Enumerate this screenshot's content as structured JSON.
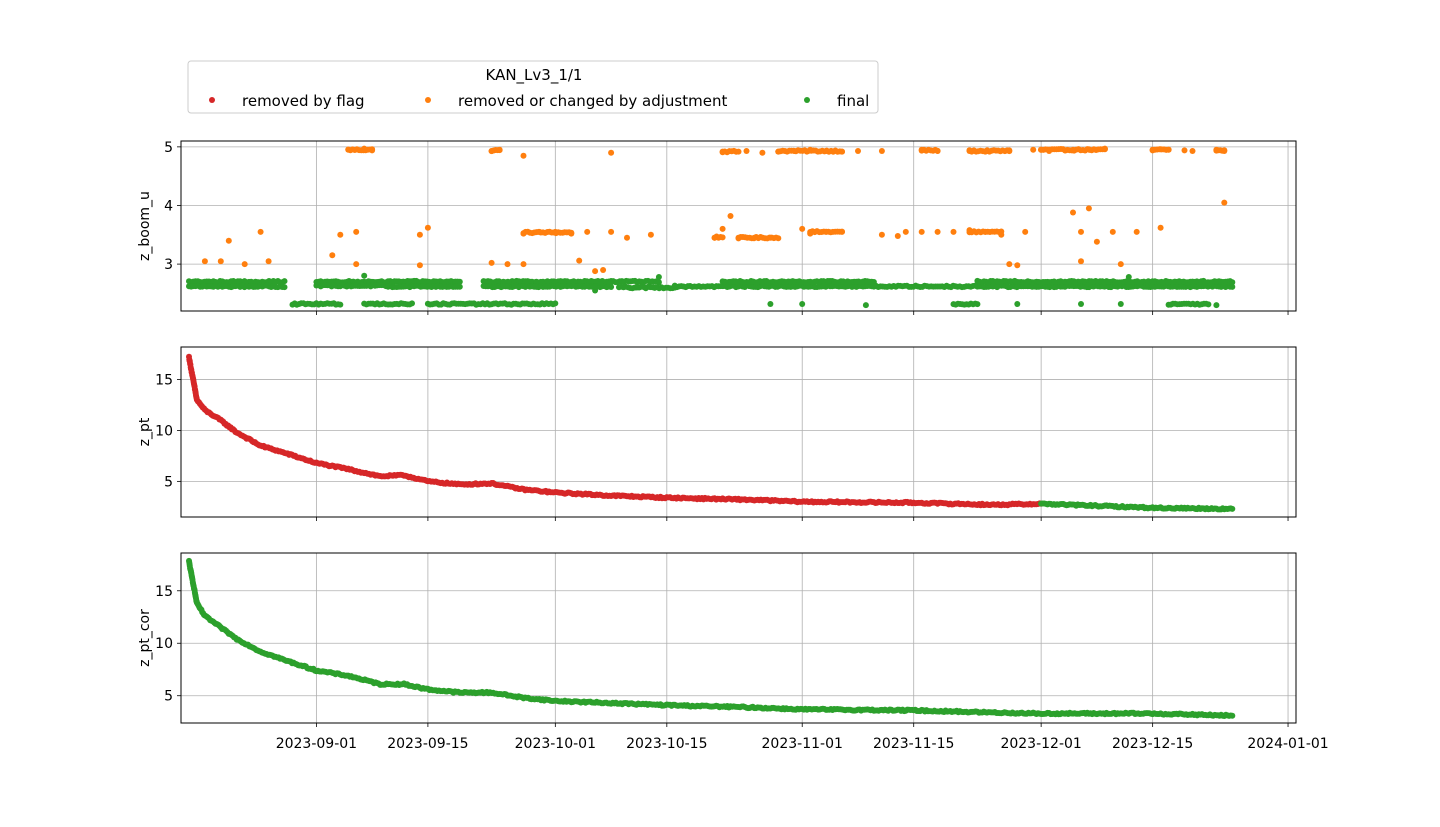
{
  "chart_data": {
    "type": "scatter",
    "legend": {
      "title": "KAN_Lv3_1/1",
      "placement": "top-left",
      "entries": [
        {
          "label": "removed by flag",
          "color": "#d62728"
        },
        {
          "label": "removed or changed by adjustment",
          "color": "#ff7f0e"
        },
        {
          "label": "final",
          "color": "#2ca02c"
        }
      ]
    },
    "x_axis": {
      "type": "date",
      "range": [
        "2023-08-15",
        "2024-01-02"
      ],
      "ticks": [
        "2023-09-01",
        "2023-09-15",
        "2023-10-01",
        "2023-10-15",
        "2023-11-01",
        "2023-11-15",
        "2023-12-01",
        "2023-12-15",
        "2024-01-01"
      ],
      "grid": true
    },
    "panels": [
      {
        "ylabel": "z_boom_u",
        "ylim": [
          2.2,
          5.1
        ],
        "yticks": [
          3,
          4,
          5
        ],
        "series": [
          {
            "name": "removed or changed by adjustment",
            "color": "#ff7f0e",
            "points": [
              [
                "2023-08-18",
                3.05
              ],
              [
                "2023-08-20",
                3.05
              ],
              [
                "2023-08-21",
                3.4
              ],
              [
                "2023-08-23",
                3.0
              ],
              [
                "2023-08-25",
                3.55
              ],
              [
                "2023-08-26",
                3.05
              ],
              [
                "2023-09-03",
                3.15
              ],
              [
                "2023-09-04",
                3.5
              ],
              [
                "2023-09-05",
                4.95
              ],
              [
                "2023-09-06",
                3.55
              ],
              [
                "2023-09-06",
                3.0
              ],
              [
                "2023-09-07",
                4.97
              ],
              [
                "2023-09-08",
                4.94
              ],
              [
                "2023-09-14",
                3.5
              ],
              [
                "2023-09-14",
                2.98
              ],
              [
                "2023-09-15",
                3.62
              ],
              [
                "2023-09-23",
                4.93
              ],
              [
                "2023-09-24",
                4.95
              ],
              [
                "2023-09-23",
                3.02
              ],
              [
                "2023-09-25",
                3.0
              ],
              [
                "2023-09-27",
                4.85
              ],
              [
                "2023-09-27",
                3.0
              ],
              [
                "2023-09-27",
                3.52
              ],
              [
                "2023-09-29",
                3.55
              ],
              [
                "2023-10-01",
                3.55
              ],
              [
                "2023-10-03",
                3.52
              ],
              [
                "2023-10-04",
                3.06
              ],
              [
                "2023-10-05",
                3.55
              ],
              [
                "2023-10-06",
                2.88
              ],
              [
                "2023-10-07",
                2.9
              ],
              [
                "2023-10-08",
                3.55
              ],
              [
                "2023-10-08",
                4.9
              ],
              [
                "2023-10-10",
                3.45
              ],
              [
                "2023-10-13",
                3.5
              ],
              [
                "2023-10-21",
                3.45
              ],
              [
                "2023-10-22",
                3.6
              ],
              [
                "2023-10-22",
                4.92
              ],
              [
                "2023-10-23",
                3.82
              ],
              [
                "2023-10-24",
                3.45
              ],
              [
                "2023-10-25",
                4.93
              ],
              [
                "2023-10-26",
                3.45
              ],
              [
                "2023-10-27",
                4.9
              ],
              [
                "2023-10-28",
                3.45
              ],
              [
                "2023-10-29",
                4.92
              ],
              [
                "2023-10-31",
                4.93
              ],
              [
                "2023-11-01",
                3.6
              ],
              [
                "2023-11-02",
                3.52
              ],
              [
                "2023-11-02",
                4.95
              ],
              [
                "2023-11-04",
                4.93
              ],
              [
                "2023-11-04",
                3.55
              ],
              [
                "2023-11-06",
                4.92
              ],
              [
                "2023-11-06",
                3.55
              ],
              [
                "2023-11-08",
                4.93
              ],
              [
                "2023-11-11",
                4.93
              ],
              [
                "2023-11-11",
                3.5
              ],
              [
                "2023-11-13",
                3.48
              ],
              [
                "2023-11-14",
                3.55
              ],
              [
                "2023-11-16",
                4.95
              ],
              [
                "2023-11-16",
                3.55
              ],
              [
                "2023-11-18",
                4.93
              ],
              [
                "2023-11-18",
                3.55
              ],
              [
                "2023-11-20",
                3.55
              ],
              [
                "2023-11-22",
                4.93
              ],
              [
                "2023-11-22",
                3.58
              ],
              [
                "2023-11-24",
                3.55
              ],
              [
                "2023-11-24",
                4.92
              ],
              [
                "2023-11-26",
                3.5
              ],
              [
                "2023-11-27",
                4.94
              ],
              [
                "2023-11-27",
                3.0
              ],
              [
                "2023-11-28",
                2.98
              ],
              [
                "2023-11-29",
                3.55
              ],
              [
                "2023-11-30",
                4.95
              ],
              [
                "2023-12-01",
                4.95
              ],
              [
                "2023-12-01",
                4.95
              ],
              [
                "2023-12-02",
                4.93
              ],
              [
                "2023-12-04",
                4.94
              ],
              [
                "2023-12-05",
                4.95
              ],
              [
                "2023-12-05",
                3.88
              ],
              [
                "2023-12-06",
                3.55
              ],
              [
                "2023-12-06",
                3.05
              ],
              [
                "2023-12-07",
                4.96
              ],
              [
                "2023-12-07",
                3.95
              ],
              [
                "2023-12-08",
                3.38
              ],
              [
                "2023-12-09",
                4.97
              ],
              [
                "2023-12-10",
                3.55
              ],
              [
                "2023-12-11",
                3.0
              ],
              [
                "2023-12-13",
                3.55
              ],
              [
                "2023-12-15",
                4.94
              ],
              [
                "2023-12-16",
                4.96
              ],
              [
                "2023-12-16",
                3.62
              ],
              [
                "2023-12-17",
                4.95
              ],
              [
                "2023-12-19",
                4.94
              ],
              [
                "2023-12-20",
                4.93
              ],
              [
                "2023-12-23",
                4.95
              ],
              [
                "2023-12-24",
                4.93
              ],
              [
                "2023-12-24",
                4.05
              ]
            ],
            "runs": [
              [
                "2023-09-05",
                "2023-09-08",
                4.95
              ],
              [
                "2023-09-23",
                "2023-09-24",
                4.94
              ],
              [
                "2023-09-27",
                "2023-10-03",
                3.54
              ],
              [
                "2023-10-21",
                "2023-10-22",
                3.46
              ],
              [
                "2023-10-24",
                "2023-10-29",
                3.45
              ],
              [
                "2023-10-22",
                "2023-10-24",
                4.92
              ],
              [
                "2023-10-29",
                "2023-11-06",
                4.93
              ],
              [
                "2023-11-02",
                "2023-11-06",
                3.55
              ],
              [
                "2023-11-16",
                "2023-11-18",
                4.94
              ],
              [
                "2023-11-22",
                "2023-11-27",
                4.93
              ],
              [
                "2023-11-22",
                "2023-11-26",
                3.55
              ],
              [
                "2023-12-01",
                "2023-12-09",
                4.95
              ],
              [
                "2023-12-15",
                "2023-12-17",
                4.95
              ],
              [
                "2023-12-23",
                "2023-12-24",
                4.94
              ]
            ]
          },
          {
            "name": "final",
            "color": "#2ca02c",
            "runs": [
              [
                "2023-08-16",
                "2023-08-28",
                2.7
              ],
              [
                "2023-08-16",
                "2023-08-28",
                2.62
              ],
              [
                "2023-08-29",
                "2023-09-04",
                2.32
              ],
              [
                "2023-09-01",
                "2023-09-10",
                2.7
              ],
              [
                "2023-09-01",
                "2023-09-10",
                2.63
              ],
              [
                "2023-09-07",
                "2023-09-13",
                2.32
              ],
              [
                "2023-09-10",
                "2023-09-19",
                2.7
              ],
              [
                "2023-09-10",
                "2023-09-19",
                2.62
              ],
              [
                "2023-09-15",
                "2023-10-01",
                2.32
              ],
              [
                "2023-09-22",
                "2023-10-08",
                2.7
              ],
              [
                "2023-09-22",
                "2023-10-08",
                2.62
              ],
              [
                "2023-10-08",
                "2023-10-14",
                2.7
              ],
              [
                "2023-10-09",
                "2023-10-16",
                2.6
              ],
              [
                "2023-10-16",
                "2023-11-10",
                2.62
              ],
              [
                "2023-10-22",
                "2023-11-10",
                2.7
              ],
              [
                "2023-11-10",
                "2023-11-23",
                2.62
              ],
              [
                "2023-11-20",
                "2023-11-23",
                2.32
              ],
              [
                "2023-11-23",
                "2023-12-15",
                2.62
              ],
              [
                "2023-11-23",
                "2023-12-15",
                2.7
              ],
              [
                "2023-12-15",
                "2023-12-25",
                2.62
              ],
              [
                "2023-12-15",
                "2023-12-25",
                2.7
              ],
              [
                "2023-12-17",
                "2023-12-22",
                2.32
              ]
            ],
            "points": [
              [
                "2023-09-07",
                2.8
              ],
              [
                "2023-10-06",
                2.55
              ],
              [
                "2023-10-14",
                2.78
              ],
              [
                "2023-10-28",
                2.32
              ],
              [
                "2023-11-01",
                2.32
              ],
              [
                "2023-11-09",
                2.3
              ],
              [
                "2023-11-28",
                2.32
              ],
              [
                "2023-12-06",
                2.32
              ],
              [
                "2023-12-11",
                2.32
              ],
              [
                "2023-12-12",
                2.78
              ],
              [
                "2023-12-23",
                2.3
              ]
            ]
          }
        ]
      },
      {
        "ylabel": "z_pt",
        "ylim": [
          1.5,
          18.2
        ],
        "yticks": [
          5,
          10,
          15
        ],
        "series": [
          {
            "name": "removed by flag",
            "color": "#d62728",
            "curve": [
              [
                "2023-08-16",
                17.2
              ],
              [
                "2023-08-17",
                13.0
              ],
              [
                "2023-08-18",
                12.0
              ],
              [
                "2023-08-20",
                11.0
              ],
              [
                "2023-08-22",
                9.8
              ],
              [
                "2023-08-25",
                8.5
              ],
              [
                "2023-08-28",
                7.8
              ],
              [
                "2023-09-01",
                6.8
              ],
              [
                "2023-09-05",
                6.2
              ],
              [
                "2023-09-09",
                5.5
              ],
              [
                "2023-09-12",
                5.6
              ],
              [
                "2023-09-15",
                5.0
              ],
              [
                "2023-09-19",
                4.7
              ],
              [
                "2023-09-23",
                4.8
              ],
              [
                "2023-09-27",
                4.2
              ],
              [
                "2023-10-01",
                3.9
              ],
              [
                "2023-10-08",
                3.6
              ],
              [
                "2023-10-15",
                3.4
              ],
              [
                "2023-10-25",
                3.2
              ],
              [
                "2023-11-01",
                3.0
              ],
              [
                "2023-11-15",
                2.9
              ],
              [
                "2023-11-25",
                2.7
              ],
              [
                "2023-12-01",
                2.8
              ]
            ]
          },
          {
            "name": "final",
            "color": "#2ca02c",
            "curve": [
              [
                "2023-12-01",
                2.8
              ],
              [
                "2023-12-08",
                2.6
              ],
              [
                "2023-12-15",
                2.4
              ],
              [
                "2023-12-25",
                2.3
              ]
            ]
          }
        ]
      },
      {
        "ylabel": "z_pt_cor",
        "ylim": [
          2.4,
          18.6
        ],
        "yticks": [
          5,
          10,
          15
        ],
        "series": [
          {
            "name": "final",
            "color": "#2ca02c",
            "curve": [
              [
                "2023-08-16",
                17.8
              ],
              [
                "2023-08-17",
                13.8
              ],
              [
                "2023-08-18",
                12.6
              ],
              [
                "2023-08-20",
                11.5
              ],
              [
                "2023-08-22",
                10.4
              ],
              [
                "2023-08-25",
                9.2
              ],
              [
                "2023-08-28",
                8.4
              ],
              [
                "2023-09-01",
                7.4
              ],
              [
                "2023-09-05",
                6.9
              ],
              [
                "2023-09-09",
                6.1
              ],
              [
                "2023-09-12",
                6.1
              ],
              [
                "2023-09-15",
                5.6
              ],
              [
                "2023-09-19",
                5.3
              ],
              [
                "2023-09-23",
                5.3
              ],
              [
                "2023-09-27",
                4.8
              ],
              [
                "2023-10-01",
                4.5
              ],
              [
                "2023-10-08",
                4.3
              ],
              [
                "2023-10-15",
                4.1
              ],
              [
                "2023-10-25",
                3.9
              ],
              [
                "2023-11-01",
                3.7
              ],
              [
                "2023-11-15",
                3.6
              ],
              [
                "2023-11-25",
                3.4
              ],
              [
                "2023-12-01",
                3.3
              ],
              [
                "2023-12-15",
                3.3
              ],
              [
                "2023-12-25",
                3.1
              ]
            ]
          }
        ]
      }
    ]
  }
}
